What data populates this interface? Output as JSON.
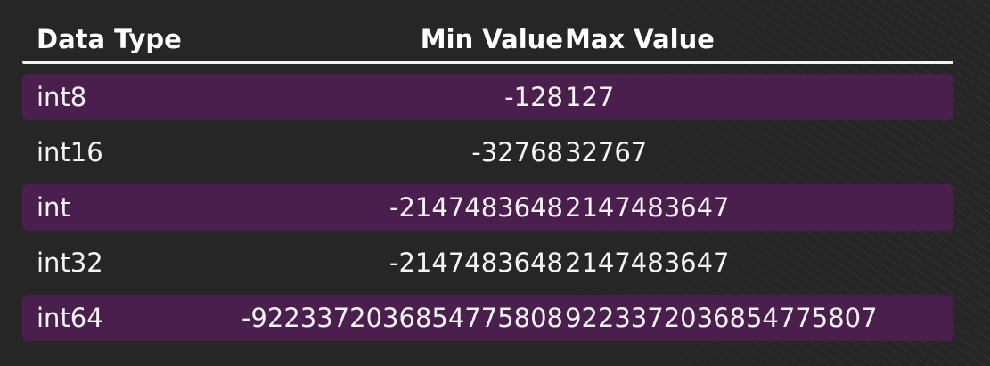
{
  "table": {
    "headers": {
      "data_type": "Data Type",
      "min_value": "Min Value",
      "max_value": "Max Value"
    },
    "rows": [
      {
        "data_type": "int8",
        "min_value": "-128",
        "max_value": "127"
      },
      {
        "data_type": "int16",
        "min_value": "-32768",
        "max_value": "32767"
      },
      {
        "data_type": "int",
        "min_value": "-2147483648",
        "max_value": "2147483647"
      },
      {
        "data_type": "int32",
        "min_value": "-2147483648",
        "max_value": "2147483647"
      },
      {
        "data_type": "int64",
        "min_value": "-9223372036854775808",
        "max_value": "9223372036854775807"
      }
    ]
  },
  "colors": {
    "background": "#262626",
    "highlight_row": "#4a1f4d",
    "text": "#f4f4f4",
    "rule": "#f2f2f2"
  }
}
